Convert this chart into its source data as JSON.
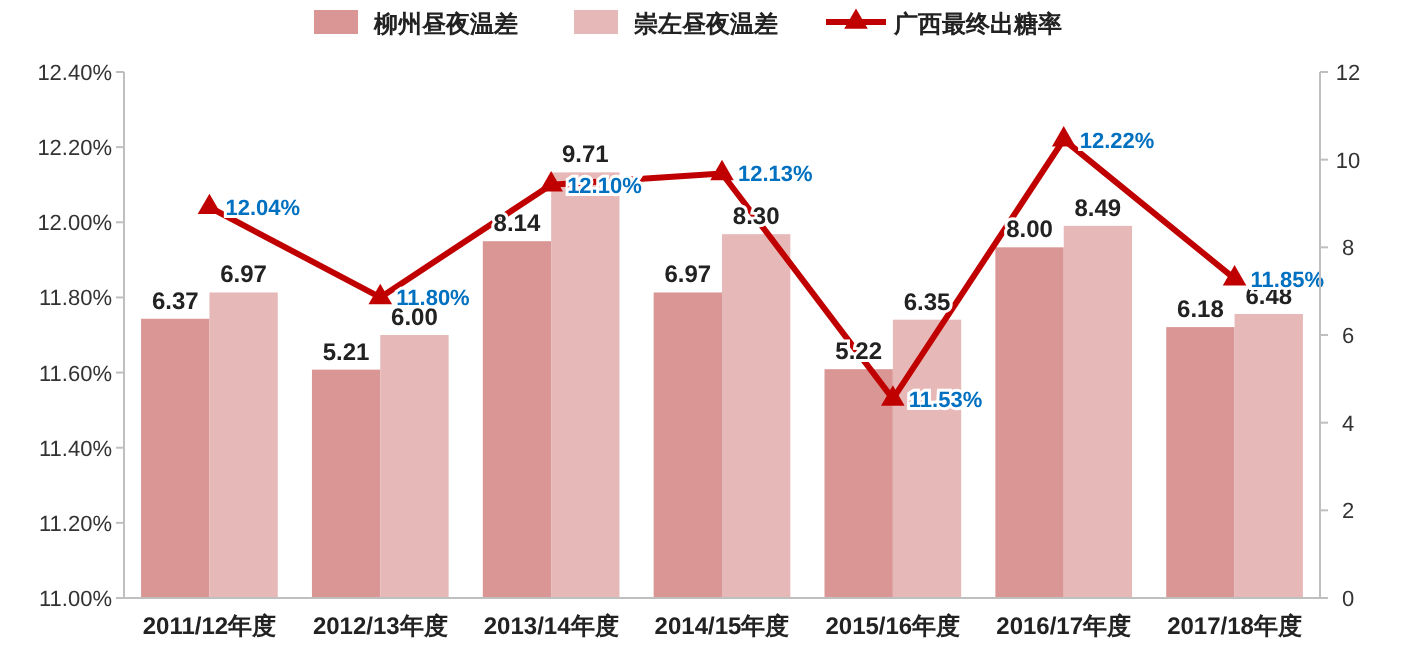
{
  "chart_data": {
    "type": "bar",
    "categories": [
      "2011/12年度",
      "2012/13年度",
      "2013/14年度",
      "2014/15年度",
      "2015/16年度",
      "2016/17年度",
      "2017/18年度"
    ],
    "series": [
      {
        "name": "柳州昼夜温差",
        "color": "#d99694",
        "axis": "y2",
        "values": [
          6.37,
          5.21,
          8.14,
          6.97,
          5.22,
          8.0,
          6.18
        ],
        "value_labels": [
          "6.37",
          "5.21",
          "8.14",
          "6.97",
          "5.22",
          "8.00",
          "6.18"
        ]
      },
      {
        "name": "崇左昼夜温差",
        "color": "#e6b9b8",
        "axis": "y2",
        "values": [
          6.97,
          6.0,
          9.71,
          8.3,
          6.35,
          8.49,
          6.48
        ],
        "value_labels": [
          "6.97",
          "6.00",
          "9.71",
          "8.30",
          "6.35",
          "8.49",
          "6.48"
        ]
      },
      {
        "name": "广西最终出糖率",
        "type": "line",
        "color": "#c00000",
        "marker": "triangle",
        "values": [
          12.04,
          11.8,
          12.1,
          12.13,
          11.53,
          12.22,
          11.85
        ],
        "value_labels": [
          "12.04%",
          "11.80%",
          "12.10%",
          "12.13%",
          "11.53%",
          "12.22%",
          "11.85%"
        ]
      }
    ],
    "ylim": [
      11,
      12.4
    ],
    "yticks": [
      {
        "value": 11,
        "label": "11.00%"
      },
      {
        "value": 11.2,
        "label": "11.20%"
      },
      {
        "value": 11.4,
        "label": "11.40%"
      },
      {
        "value": 11.6,
        "label": "11.60%"
      },
      {
        "value": 11.8,
        "label": "11.80%"
      },
      {
        "value": 12,
        "label": "12.00%"
      },
      {
        "value": 12.2,
        "label": "12.20%"
      },
      {
        "value": 12.4,
        "label": "12.40%"
      }
    ],
    "y2lim": [
      0,
      12
    ],
    "y2ticks": [
      0,
      2,
      4,
      6,
      8,
      10,
      12
    ],
    "legend": "top",
    "line_style": "solid"
  }
}
